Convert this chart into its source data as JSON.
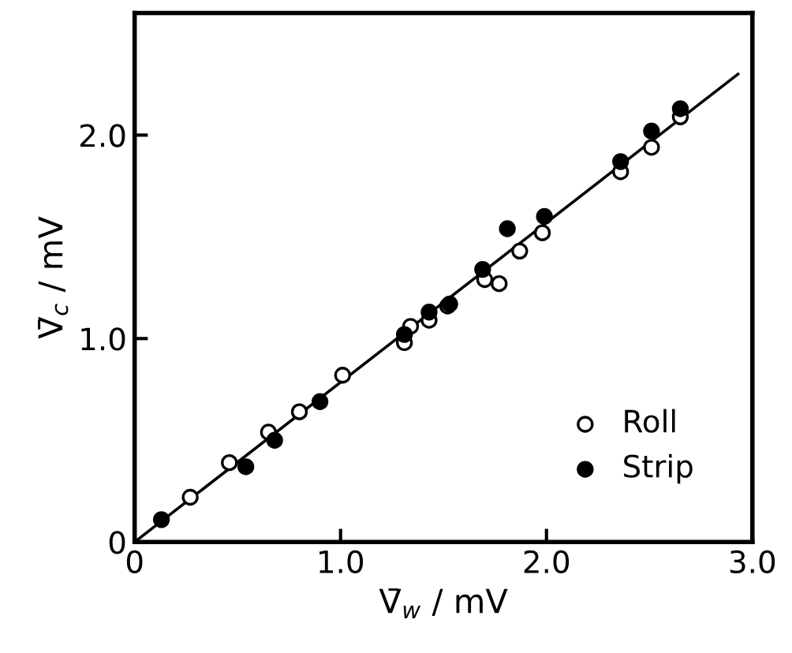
{
  "chart_data": {
    "type": "scatter",
    "xlabel": "V̄$_{w}$ / mV",
    "ylabel": "V̄$_{c}$ / mV",
    "xlim": [
      0,
      3.0
    ],
    "ylim": [
      0,
      2.6
    ],
    "xticks": [
      0,
      {
        "value": 1,
        "label": "1.0"
      },
      {
        "value": 2,
        "label": "2.0"
      },
      {
        "value": 3,
        "label": "3.0"
      }
    ],
    "yticks": [
      0,
      {
        "value": 1,
        "label": "1.0"
      },
      {
        "value": 2,
        "label": "2.0"
      }
    ],
    "grid": false,
    "legend": "bottom right",
    "marker": "circle",
    "series": [
      {
        "name": "Roll",
        "color": "#ffffff",
        "x": [
          0.27,
          0.46,
          0.65,
          0.8,
          1.01,
          1.31,
          1.34,
          1.43,
          1.52,
          1.7,
          1.77,
          1.87,
          1.98,
          2.36,
          2.51,
          2.65
        ],
        "values": [
          0.22,
          0.39,
          0.54,
          0.64,
          0.82,
          0.98,
          1.06,
          1.09,
          1.16,
          1.29,
          1.27,
          1.43,
          1.52,
          1.82,
          1.94,
          2.09
        ]
      },
      {
        "name": "Strip",
        "color": "#000000",
        "x": [
          0.13,
          0.54,
          0.68,
          0.9,
          1.31,
          1.43,
          1.53,
          1.69,
          1.81,
          1.99,
          2.36,
          2.51,
          2.65
        ],
        "values": [
          0.11,
          0.37,
          0.5,
          0.69,
          1.02,
          1.13,
          1.17,
          1.34,
          1.54,
          1.6,
          1.87,
          2.02,
          2.13
        ]
      },
      {
        "type": "line",
        "color": "#000000",
        "line_style": "solid",
        "marker": "none",
        "x": [
          0,
          2.93
        ],
        "values": [
          0,
          2.3
        ]
      }
    ]
  }
}
